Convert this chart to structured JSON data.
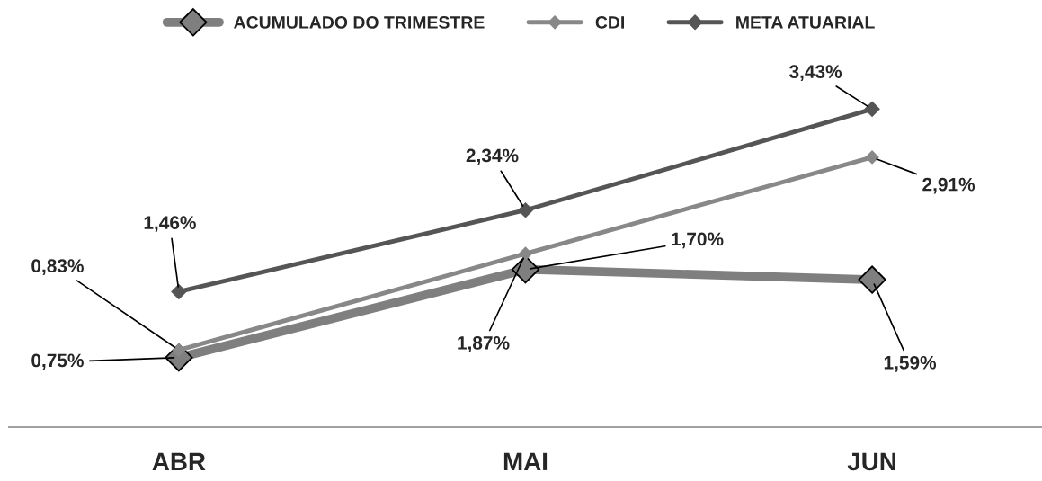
{
  "chart_data": {
    "type": "line",
    "categories": [
      "ABR",
      "MAI",
      "JUN"
    ],
    "series": [
      {
        "name": "ACUMULADO DO TRIMESTRE",
        "color": "#7f7f7f",
        "values": [
          0.75,
          1.7,
          1.59
        ],
        "value_labels": [
          "0,75%",
          "1,70%",
          "1,59%"
        ]
      },
      {
        "name": "CDI",
        "color": "#888888",
        "values": [
          0.83,
          1.87,
          2.91
        ],
        "value_labels": [
          "0,83%",
          "1,87%",
          "2,91%"
        ]
      },
      {
        "name": "META ATUARIAL",
        "color": "#555555",
        "values": [
          1.46,
          2.34,
          3.43
        ],
        "value_labels": [
          "1,46%",
          "2,34%",
          "3,43%"
        ]
      }
    ],
    "marker": "diamond",
    "legend": "top",
    "grid": false,
    "tick_labels": "x"
  }
}
